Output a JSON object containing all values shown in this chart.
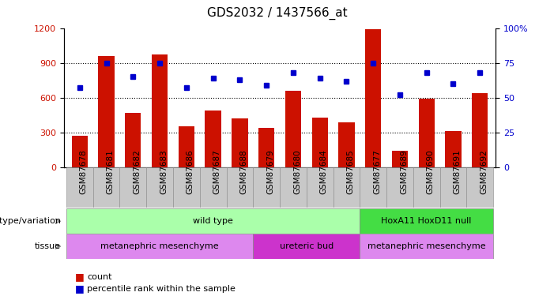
{
  "title": "GDS2032 / 1437566_at",
  "samples": [
    "GSM87678",
    "GSM87681",
    "GSM87682",
    "GSM87683",
    "GSM87686",
    "GSM87687",
    "GSM87688",
    "GSM87679",
    "GSM87680",
    "GSM87684",
    "GSM87685",
    "GSM87677",
    "GSM87689",
    "GSM87690",
    "GSM87691",
    "GSM87692"
  ],
  "counts": [
    270,
    960,
    470,
    970,
    350,
    490,
    420,
    340,
    660,
    430,
    390,
    1190,
    140,
    590,
    310,
    640
  ],
  "percentile": [
    57,
    75,
    65,
    75,
    57,
    64,
    63,
    59,
    68,
    64,
    62,
    75,
    52,
    68,
    60,
    68
  ],
  "ylim_left": [
    0,
    1200
  ],
  "ylim_right": [
    0,
    100
  ],
  "yticks_left": [
    0,
    300,
    600,
    900,
    1200
  ],
  "yticks_right": [
    0,
    25,
    50,
    75,
    100
  ],
  "bar_color": "#CC1100",
  "dot_color": "#0000CC",
  "background_color": "#ffffff",
  "plot_bg_color": "#ffffff",
  "xtick_bg_color": "#c8c8c8",
  "genotype_groups": [
    {
      "label": "wild type",
      "start": 0,
      "end": 10,
      "color": "#aaffaa"
    },
    {
      "label": "HoxA11 HoxD11 null",
      "start": 11,
      "end": 15,
      "color": "#44dd44"
    }
  ],
  "tissue_groups": [
    {
      "label": "metanephric mesenchyme",
      "start": 0,
      "end": 6,
      "color": "#dd88ee"
    },
    {
      "label": "ureteric bud",
      "start": 7,
      "end": 10,
      "color": "#cc33cc"
    },
    {
      "label": "metanephric mesenchyme",
      "start": 11,
      "end": 15,
      "color": "#dd88ee"
    }
  ],
  "legend_count_label": "count",
  "legend_pct_label": "percentile rank within the sample",
  "genotype_label": "genotype/variation",
  "tissue_label": "tissue",
  "grid_lines": [
    300,
    600,
    900
  ],
  "title_fontsize": 11,
  "axis_label_fontsize": 8,
  "tick_label_fontsize": 7.5,
  "bar_width": 0.6
}
